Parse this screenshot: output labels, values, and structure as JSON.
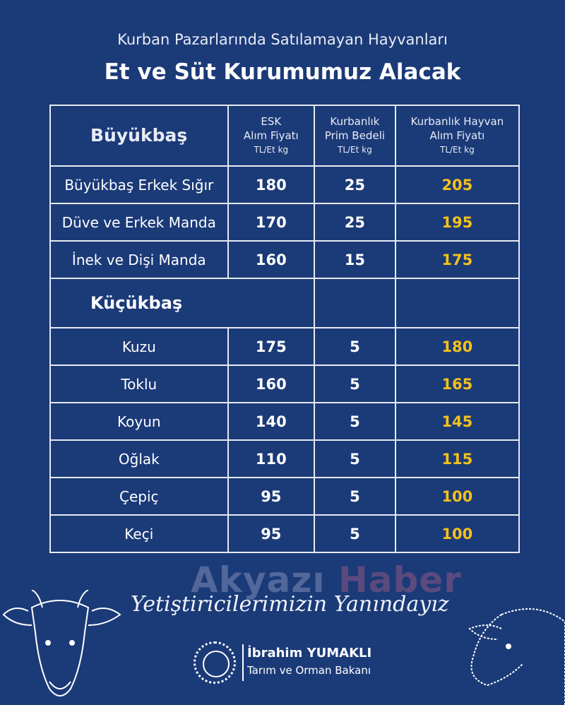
{
  "header": {
    "subtitle": "Kurban Pazarlarında Satılamayan Hayvanları",
    "title": "Et ve Süt Kurumumuz Alacak"
  },
  "table": {
    "columns": [
      {
        "line1": "ESK",
        "line2": "Alım Fiyatı",
        "unit": "TL/Et kg"
      },
      {
        "line1": "Kurbanlık",
        "line2": "Prim Bedeli",
        "unit": "TL/Et kg"
      },
      {
        "line1": "Kurbanlık Hayvan",
        "line2": "Alım Fiyatı",
        "unit": "TL/Et kg"
      }
    ],
    "section1": "Büyükbaş",
    "rows1": [
      {
        "name": "Büyükbaş Erkek Sığır",
        "esk": "180",
        "prim": "25",
        "total": "205"
      },
      {
        "name": "Düve ve Erkek Manda",
        "esk": "170",
        "prim": "25",
        "total": "195"
      },
      {
        "name": "İnek ve Dişi Manda",
        "esk": "160",
        "prim": "15",
        "total": "175"
      }
    ],
    "section2": "Küçükbaş",
    "rows2": [
      {
        "name": "Kuzu",
        "esk": "175",
        "prim": "5",
        "total": "180"
      },
      {
        "name": "Toklu",
        "esk": "160",
        "prim": "5",
        "total": "165"
      },
      {
        "name": "Koyun",
        "esk": "140",
        "prim": "5",
        "total": "145"
      },
      {
        "name": "Oğlak",
        "esk": "110",
        "prim": "5",
        "total": "115"
      },
      {
        "name": "Çepiç",
        "esk": "95",
        "prim": "5",
        "total": "100"
      },
      {
        "name": "Keçi",
        "esk": "95",
        "prim": "5",
        "total": "100"
      }
    ]
  },
  "watermark": {
    "part1": "Akyazı",
    "part2": "Haber"
  },
  "footer": {
    "slogan": "Yetiştiricilerimizin Yanındayız",
    "minister": "İbrahim YUMAKLI",
    "ministry": "Tarım ve Orman Bakanı"
  },
  "colors": {
    "background": "#1b3a78",
    "highlight": "#f3c11c"
  }
}
